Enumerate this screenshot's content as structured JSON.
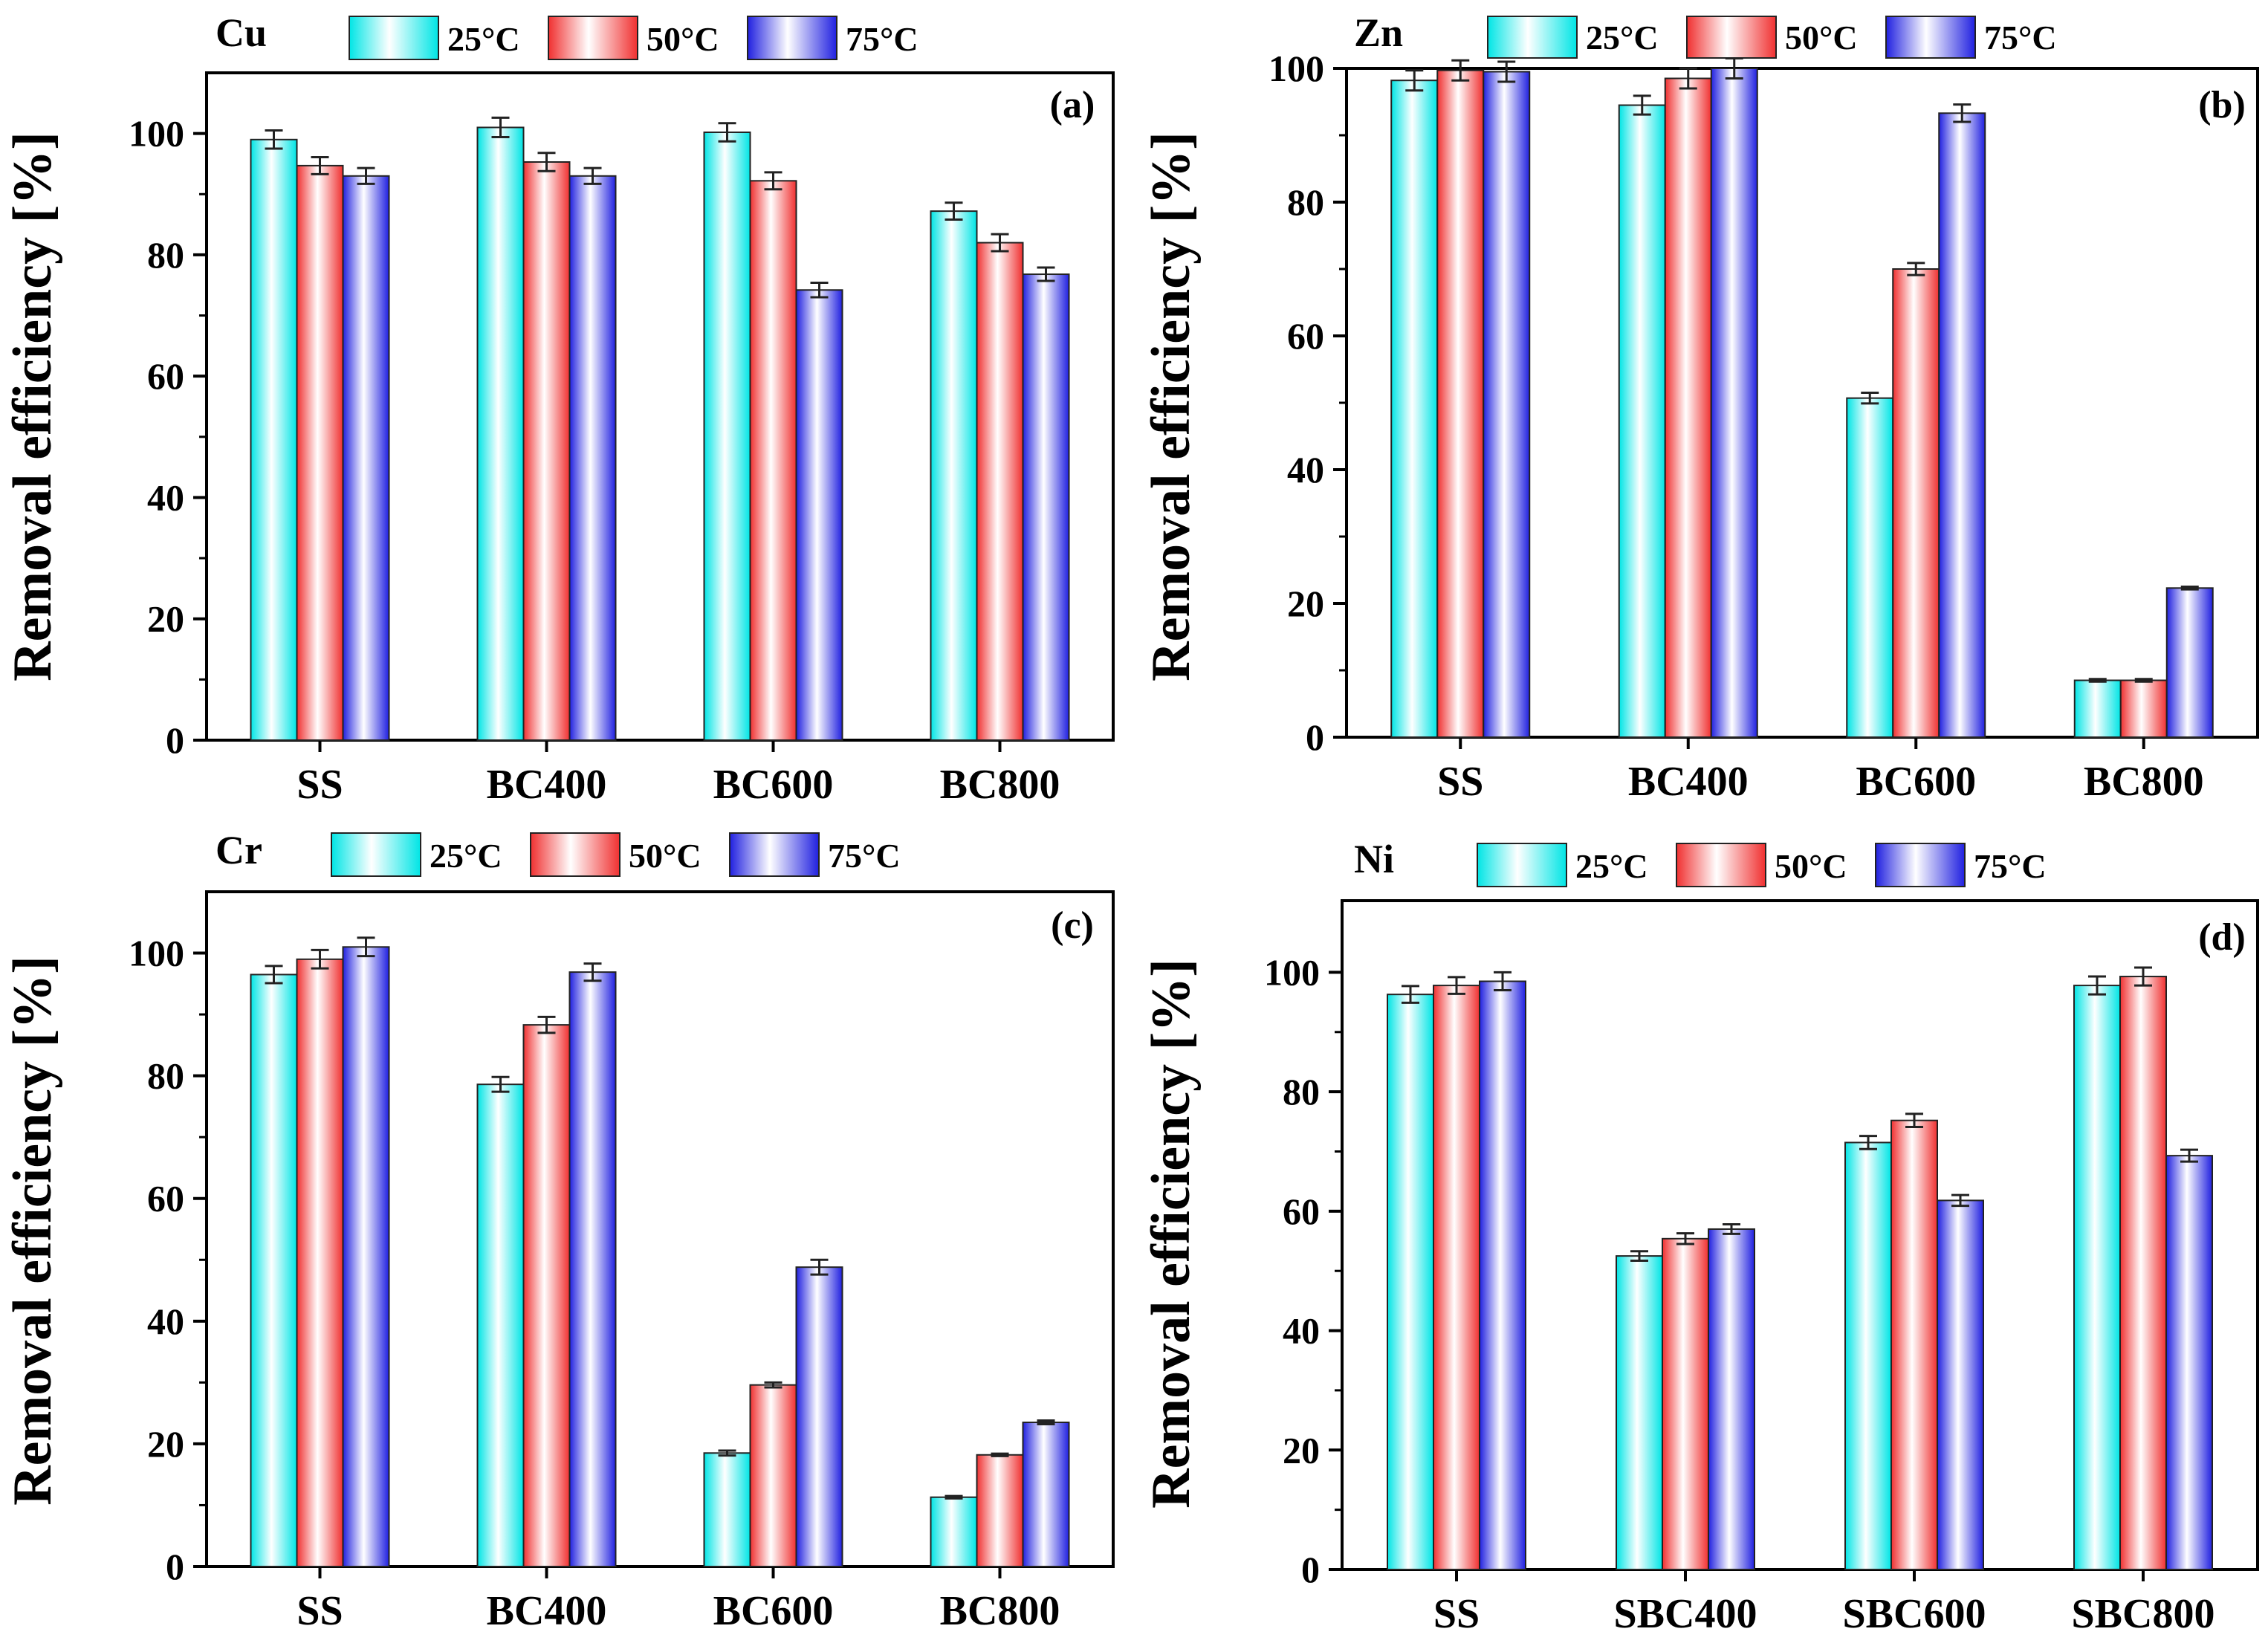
{
  "figure": {
    "legend_entries": [
      "25°C",
      "50°C",
      "75°C"
    ],
    "colors": {
      "s25": {
        "edge": "#00e5e5",
        "mid": "#ffffff"
      },
      "s50": {
        "edge": "#f03030",
        "mid": "#ffffff"
      },
      "s75": {
        "edge": "#2020e0",
        "mid": "#ffffff"
      }
    }
  },
  "chart_data": [
    {
      "type": "bar",
      "panel_label": "(a)",
      "metal": "Cu",
      "ylabel": "Removal efficiency [%]",
      "ylim": [
        0,
        110
      ],
      "yticks": [
        0,
        20,
        40,
        60,
        80,
        100
      ],
      "categories": [
        "SS",
        "BC400",
        "BC600",
        "BC800"
      ],
      "legend_position": "top",
      "series": [
        {
          "name": "25°C",
          "values": [
            99.0,
            101.0,
            100.2,
            87.2
          ],
          "errors": [
            1.5,
            1.6,
            1.5,
            1.4
          ]
        },
        {
          "name": "50°C",
          "values": [
            94.7,
            95.3,
            92.2,
            82.0
          ],
          "errors": [
            1.4,
            1.5,
            1.4,
            1.4
          ]
        },
        {
          "name": "75°C",
          "values": [
            93.0,
            93.0,
            74.2,
            76.8
          ],
          "errors": [
            1.3,
            1.3,
            1.2,
            1.1
          ]
        }
      ]
    },
    {
      "type": "bar",
      "panel_label": "(b)",
      "metal": "Zn",
      "ylabel": "Removal efficiency [%]",
      "ylim": [
        0,
        100
      ],
      "yticks": [
        0,
        20,
        40,
        60,
        80,
        100
      ],
      "categories": [
        "SS",
        "BC400",
        "BC600",
        "BC800"
      ],
      "legend_position": "top",
      "series": [
        {
          "name": "25°C",
          "values": [
            98.2,
            94.5,
            50.7,
            8.5
          ],
          "errors": [
            1.5,
            1.4,
            0.8,
            0.2
          ]
        },
        {
          "name": "50°C",
          "values": [
            99.7,
            98.5,
            70.0,
            8.5
          ],
          "errors": [
            1.5,
            1.5,
            0.9,
            0.2
          ]
        },
        {
          "name": "75°C",
          "values": [
            99.5,
            100.0,
            93.3,
            22.3
          ],
          "errors": [
            1.5,
            1.5,
            1.3,
            0.2
          ]
        }
      ]
    },
    {
      "type": "bar",
      "panel_label": "(c)",
      "metal": "Cr",
      "ylabel": "Removal efficiency [%]",
      "ylim": [
        0,
        110
      ],
      "yticks": [
        0,
        20,
        40,
        60,
        80,
        100
      ],
      "categories": [
        "SS",
        "BC400",
        "BC600",
        "BC800"
      ],
      "legend_position": "top",
      "series": [
        {
          "name": "25°C",
          "values": [
            96.5,
            78.6,
            18.5,
            11.3
          ],
          "errors": [
            1.4,
            1.2,
            0.4,
            0.2
          ]
        },
        {
          "name": "50°C",
          "values": [
            99.0,
            88.3,
            29.6,
            18.2
          ],
          "errors": [
            1.5,
            1.3,
            0.4,
            0.2
          ]
        },
        {
          "name": "75°C",
          "values": [
            101.0,
            96.9,
            48.8,
            23.5
          ],
          "errors": [
            1.5,
            1.4,
            1.2,
            0.3
          ]
        }
      ]
    },
    {
      "type": "bar",
      "panel_label": "(d)",
      "metal": "Ni",
      "ylabel": "Removal efficiency [%]",
      "ylim": [
        0,
        112
      ],
      "yticks": [
        0,
        20,
        40,
        60,
        80,
        100
      ],
      "categories": [
        "SS",
        "SBC400",
        "SBC600",
        "SBC800"
      ],
      "legend_position": "top",
      "series": [
        {
          "name": "25°C",
          "values": [
            96.3,
            52.5,
            71.5,
            97.8
          ],
          "errors": [
            1.4,
            0.8,
            1.1,
            1.5
          ]
        },
        {
          "name": "50°C",
          "values": [
            97.8,
            55.4,
            75.2,
            99.3
          ],
          "errors": [
            1.4,
            0.9,
            1.1,
            1.5
          ]
        },
        {
          "name": "75°C",
          "values": [
            98.5,
            57.0,
            61.8,
            69.3
          ],
          "errors": [
            1.5,
            0.8,
            0.9,
            1.0
          ]
        }
      ]
    }
  ]
}
